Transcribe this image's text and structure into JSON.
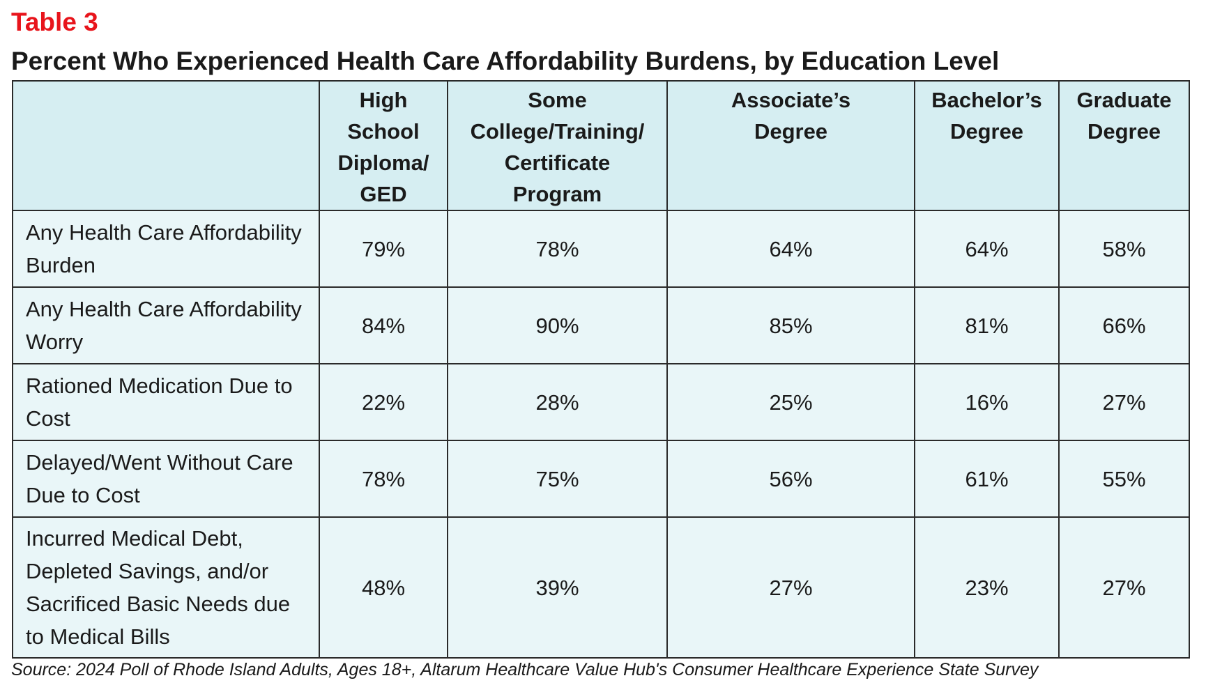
{
  "table_label": "Table 3",
  "title": "Percent Who Experienced Health Care Affordability Burdens, by Education Level",
  "columns": [
    "",
    "High School Diploma/ GED",
    "Some College/Training/ Certificate Program",
    "Associate’s Degree",
    "Bachelor’s Degree",
    "Graduate Degree"
  ],
  "rows": [
    {
      "label": "Any Health Care Affordability Burden",
      "values": [
        "79%",
        "78%",
        "64%",
        "64%",
        "58%"
      ]
    },
    {
      "label": "Any Health Care Affordability Worry",
      "values": [
        "84%",
        "90%",
        "85%",
        "81%",
        "66%"
      ]
    },
    {
      "label": "Rationed Medication Due to Cost",
      "values": [
        "22%",
        "28%",
        "25%",
        "16%",
        "27%"
      ]
    },
    {
      "label": "Delayed/Went Without Care Due to Cost",
      "values": [
        "78%",
        "75%",
        "56%",
        "61%",
        "55%"
      ]
    },
    {
      "label": "Incurred Medical Debt, Depleted Savings, and/or Sacrificed Basic Needs due to Medical Bills",
      "values": [
        "48%",
        "39%",
        "27%",
        "23%",
        "27%"
      ]
    }
  ],
  "source": "Source: 2024 Poll of Rhode Island Adults, Ages 18+, Altarum Healthcare Value Hub's Consumer Healthcare Experience State Survey",
  "colors": {
    "label_red": "#e8141b",
    "header_bg": "#d6eef2",
    "cell_bg": "#e9f6f8",
    "border": "#2a2a2a"
  }
}
